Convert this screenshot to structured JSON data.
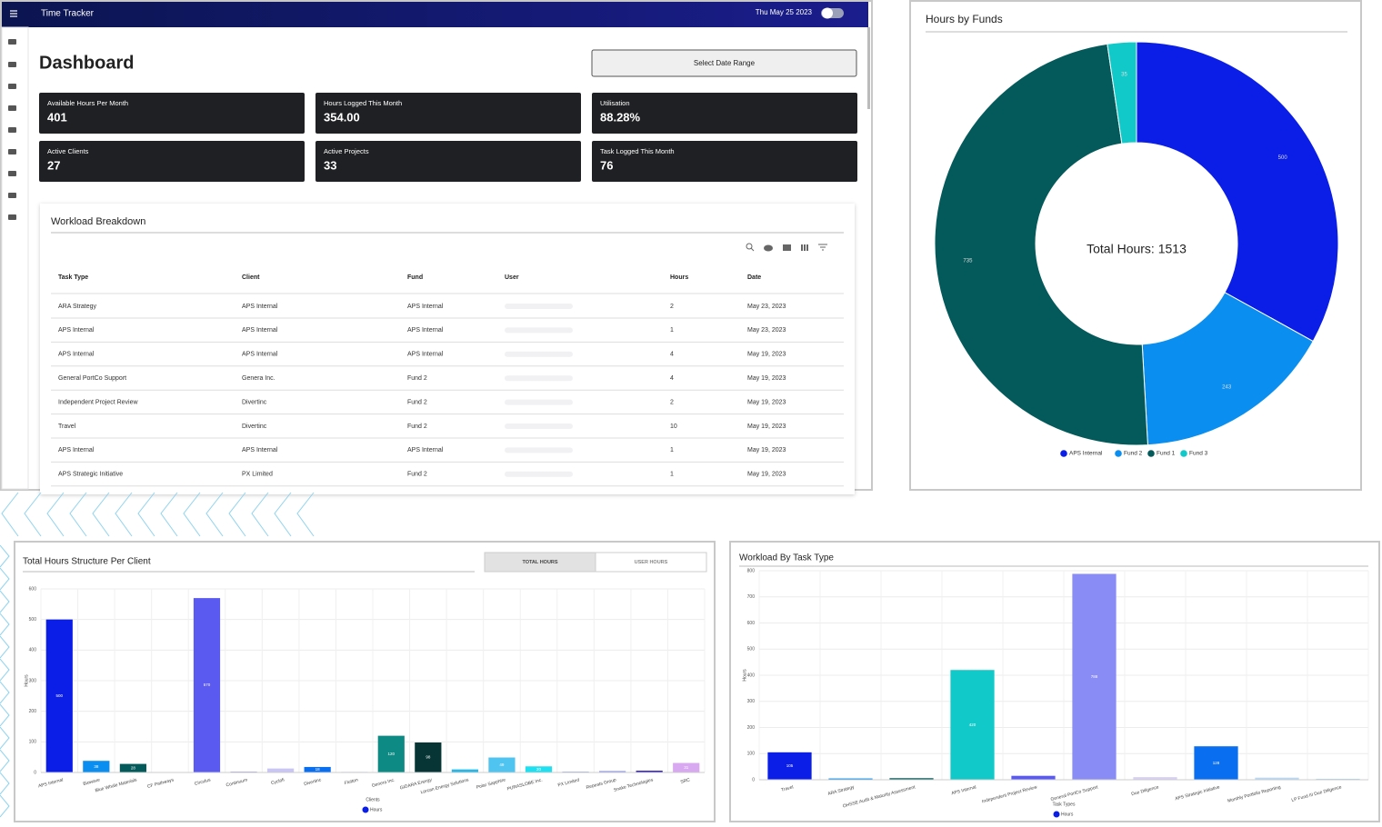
{
  "app": {
    "title": "Time Tracker",
    "date": "Thu May 25 2023"
  },
  "dashboard": {
    "title": "Dashboard",
    "date_range_button": "Select Date Range",
    "stats": [
      {
        "label": "Available Hours Per Month",
        "value": "401"
      },
      {
        "label": "Hours Logged This Month",
        "value": "354.00"
      },
      {
        "label": "Utilisation",
        "value": "88.28%"
      },
      {
        "label": "Active Clients",
        "value": "27"
      },
      {
        "label": "Active Projects",
        "value": "33"
      },
      {
        "label": "Task Logged This Month",
        "value": "76"
      }
    ]
  },
  "workload_table": {
    "title": "Workload Breakdown",
    "columns": [
      "Task Type",
      "Client",
      "Fund",
      "User",
      "Hours",
      "Date"
    ],
    "rows": [
      [
        "ARA Strategy",
        "APS Internal",
        "APS Internal",
        2,
        "May 23, 2023"
      ],
      [
        "APS Internal",
        "APS Internal",
        "APS Internal",
        1,
        "May 23, 2023"
      ],
      [
        "APS Internal",
        "APS Internal",
        "APS Internal",
        4,
        "May 19, 2023"
      ],
      [
        "General PortCo Support",
        "Genera Inc.",
        "Fund 2",
        4,
        "May 19, 2023"
      ],
      [
        "Independent Project Review",
        "Divertinc",
        "Fund 2",
        2,
        "May 19, 2023"
      ],
      [
        "Travel",
        "Divertinc",
        "Fund 2",
        10,
        "May 19, 2023"
      ],
      [
        "APS Internal",
        "APS Internal",
        "APS Internal",
        1,
        "May 19, 2023"
      ],
      [
        "APS Strategic Initiative",
        "PX Limited",
        "Fund 2",
        1,
        "May 19, 2023"
      ]
    ]
  },
  "chart_data": [
    {
      "type": "donut",
      "title": "Hours by Funds",
      "center_label": "Total Hours: 1513",
      "categories": [
        "APS Internal",
        "Fund 2",
        "Fund 1",
        "Fund 3"
      ],
      "values": [
        500,
        243,
        735,
        35
      ],
      "colors": [
        "#0a1ee8",
        "#0a8ff0",
        "#045a5a",
        "#12c9c9"
      ]
    },
    {
      "type": "bar",
      "title": "Total Hours Structure Per Client",
      "toggle": [
        "TOTAL HOURS",
        "USER HOURS"
      ],
      "x_label": "Clients",
      "y_label": "Hours",
      "categories": [
        "APS Internal",
        "Biowave",
        "Blue Whale Materials",
        "CF Pathways",
        "Circulus",
        "Continuum",
        "Cyclofi",
        "Divertinc",
        "Flutton",
        "Genera Inc.",
        "GIDARA Energy",
        "Lorcan Energy Solutions",
        "Polar Sapphire",
        "PURASLOBE Inc.",
        "PX Limited",
        "Repeats Group",
        "Snake Technologies",
        "SRC"
      ],
      "series": [
        {
          "name": "Hours",
          "color": "#0a1ee8",
          "values": [
            500,
            38,
            28,
            0,
            570,
            3,
            13,
            18,
            2,
            120,
            98,
            10,
            49,
            20,
            3,
            5,
            6,
            31
          ]
        }
      ],
      "bar_colors": [
        "#0a1ee8",
        "#0a8ff0",
        "#045a5a",
        "#12c9c9",
        "#5a5af0",
        "#aaa4ee",
        "#c9c6f5",
        "#0a6ef0",
        "#cfcff5",
        "#0e8a84",
        "#073535",
        "#28b8e8",
        "#4fc4f0",
        "#1ee0f0",
        "#a4b0f0",
        "#9aa4e8",
        "#3a2aa0",
        "#d8a8f0"
      ],
      "ylim": [
        0,
        600
      ],
      "yticks": [
        0,
        100,
        200,
        300,
        400,
        500,
        600
      ],
      "grid": true
    },
    {
      "type": "bar",
      "title": "Workload By Task Type",
      "x_label": "Task Types",
      "y_label": "Hours",
      "categories": [
        "Travel",
        "ARA Strategy",
        "OHSSE Audit & Maturity Assessment",
        "APS Internal",
        "Independent Project Review",
        "General PortCo Support",
        "Due Diligence",
        "APS Strategic Initiative",
        "Monthly Portfolio Reporting",
        "LP Fund III Due Diligence"
      ],
      "series": [
        {
          "name": "Hours",
          "color": "#0a1ee8",
          "values": [
            105,
            5,
            6,
            420,
            15,
            788,
            10,
            128,
            8,
            3
          ]
        }
      ],
      "bar_colors": [
        "#0a1ee8",
        "#0a8ff0",
        "#045a5a",
        "#12c9c9",
        "#5a5af0",
        "#8a8cf5",
        "#d8d0f5",
        "#0a6ef0",
        "#b8d8f5",
        "#88c8f0"
      ],
      "ylim": [
        0,
        800
      ],
      "yticks": [
        0,
        100,
        200,
        300,
        400,
        500,
        600,
        700,
        800
      ],
      "grid": true
    }
  ]
}
